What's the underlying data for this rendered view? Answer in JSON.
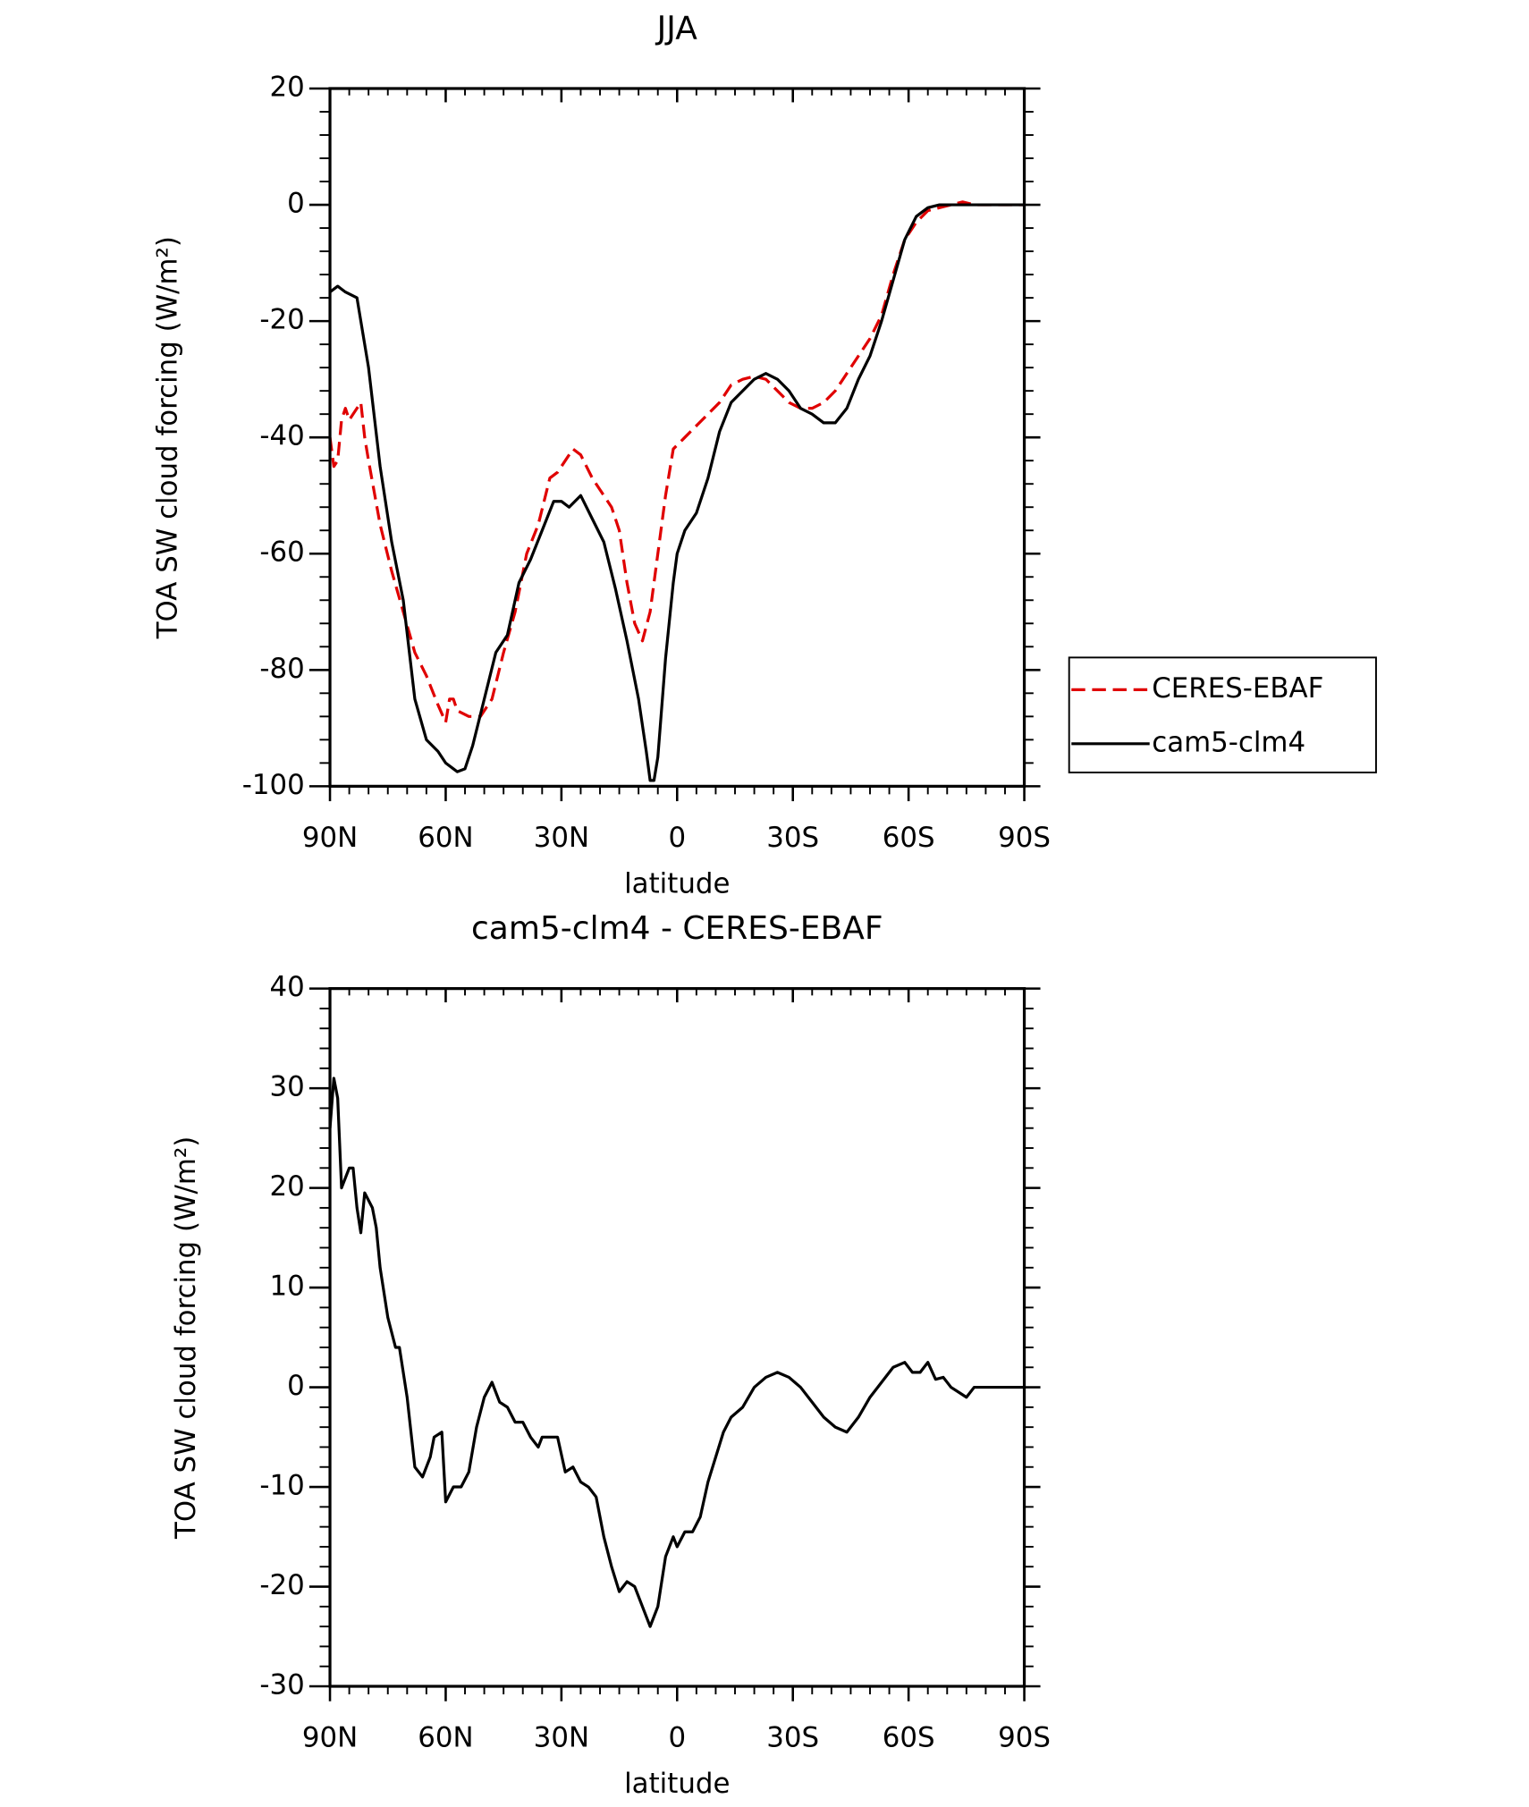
{
  "chart_data": [
    {
      "type": "line",
      "title": "JJA",
      "x_label": "latitude",
      "y_label": "TOA SW cloud forcing (W/m²)",
      "xlim": [
        90,
        -90
      ],
      "ylim": [
        -100,
        20
      ],
      "xticks": [
        {
          "value": 90,
          "label": "90N"
        },
        {
          "value": 60,
          "label": "60N"
        },
        {
          "value": 30,
          "label": "30N"
        },
        0,
        {
          "value": -30,
          "label": "30S"
        },
        {
          "value": -60,
          "label": "60S"
        },
        {
          "value": -90,
          "label": "90S"
        }
      ],
      "yticks": [
        -100,
        -80,
        -60,
        -40,
        -20,
        0,
        20
      ],
      "legend": "right",
      "series": [
        {
          "name": "CERES-EBAF",
          "color": "#e00000",
          "dash": true,
          "x": [
            90,
            89,
            88,
            87,
            86,
            85,
            83,
            82,
            81,
            80,
            77,
            74,
            71,
            68,
            65,
            62,
            60,
            59,
            58,
            57,
            54,
            51,
            48,
            45,
            42,
            39,
            36,
            33,
            31,
            29,
            27,
            25,
            22,
            20,
            17,
            15,
            13,
            11,
            9,
            7,
            5,
            3,
            1,
            -2,
            -5,
            -8,
            -11,
            -14,
            -17,
            -20,
            -23,
            -26,
            -29,
            -32,
            -35,
            -38,
            -41,
            -44,
            -47,
            -50,
            -53,
            -56,
            -59,
            -62,
            -65,
            -68,
            -71,
            -74,
            -77,
            -80,
            -90
          ],
          "values": [
            -40,
            -45,
            -44,
            -37,
            -35,
            -37,
            -35,
            -34,
            -40,
            -44,
            -55,
            -63,
            -70,
            -77,
            -81,
            -86,
            -89,
            -85,
            -85,
            -87,
            -88,
            -88,
            -85,
            -77,
            -70,
            -60,
            -55,
            -47,
            -46,
            -44,
            -42,
            -43,
            -47,
            -49,
            -52,
            -56,
            -65,
            -72,
            -75,
            -70,
            -60,
            -50,
            -42,
            -40,
            -38,
            -36,
            -34,
            -31,
            -30,
            -29.5,
            -30,
            -32,
            -34,
            -35,
            -35,
            -34,
            -32,
            -29,
            -26,
            -23,
            -19,
            -12,
            -6,
            -3,
            -1,
            -0.5,
            0,
            0.5,
            0,
            0,
            0
          ]
        },
        {
          "name": "cam5-clm4",
          "color": "#000000",
          "dash": false,
          "x": [
            90,
            88,
            86,
            83,
            80,
            77,
            74,
            71,
            68,
            65,
            62,
            60,
            57,
            55,
            53,
            50,
            47,
            44,
            41,
            38,
            35,
            32,
            30,
            28,
            25,
            22,
            19,
            16,
            13,
            10,
            8,
            7,
            6,
            5,
            3,
            1,
            0,
            -2,
            -5,
            -8,
            -11,
            -14,
            -17,
            -20,
            -23,
            -26,
            -29,
            -32,
            -35,
            -38,
            -41,
            -44,
            -47,
            -50,
            -53,
            -56,
            -59,
            -62,
            -65,
            -68,
            -75,
            -90
          ],
          "values": [
            -15,
            -14,
            -15,
            -16,
            -28,
            -45,
            -58,
            -68,
            -85,
            -92,
            -94,
            -96,
            -97.5,
            -97,
            -93,
            -85,
            -77,
            -74,
            -65,
            -61,
            -56,
            -51,
            -51,
            -52,
            -50,
            -54,
            -58,
            -66,
            -75,
            -85,
            -94,
            -99,
            -99,
            -95,
            -78,
            -65,
            -60,
            -56,
            -53,
            -47,
            -39,
            -34,
            -32,
            -30,
            -29,
            -30,
            -32,
            -35,
            -36,
            -37.5,
            -37.5,
            -35,
            -30,
            -26,
            -20,
            -13,
            -6,
            -2,
            -0.5,
            0,
            0,
            0
          ]
        }
      ]
    },
    {
      "type": "line",
      "title": "cam5-clm4 - CERES-EBAF",
      "x_label": "latitude",
      "y_label": "TOA SW cloud forcing (W/m²)",
      "xlim": [
        90,
        -90
      ],
      "ylim": [
        -30,
        40
      ],
      "xticks": [
        {
          "value": 90,
          "label": "90N"
        },
        {
          "value": 60,
          "label": "60N"
        },
        {
          "value": 30,
          "label": "30N"
        },
        0,
        {
          "value": -30,
          "label": "30S"
        },
        {
          "value": -60,
          "label": "60S"
        },
        {
          "value": -90,
          "label": "90S"
        }
      ],
      "yticks": [
        -30,
        -20,
        -10,
        0,
        10,
        20,
        30,
        40
      ],
      "series": [
        {
          "color": "#000000",
          "dash": false,
          "x": [
            90,
            89,
            88,
            87,
            85,
            84,
            83,
            82,
            81,
            79,
            78,
            77,
            75,
            73,
            72,
            70,
            68,
            66,
            64,
            63,
            61,
            60,
            58,
            56,
            54,
            52,
            50,
            48,
            46,
            44,
            42,
            40,
            38,
            36,
            35,
            33,
            31,
            29,
            27,
            25,
            23,
            21,
            19,
            17,
            15,
            13,
            11,
            9,
            7,
            5,
            3,
            1,
            0,
            -2,
            -4,
            -6,
            -8,
            -10,
            -12,
            -14,
            -17,
            -20,
            -23,
            -26,
            -29,
            -32,
            -35,
            -38,
            -41,
            -44,
            -47,
            -50,
            -53,
            -56,
            -59,
            -61,
            -63,
            -65,
            -67,
            -69,
            -71,
            -73,
            -75,
            -77,
            -79,
            -90
          ],
          "values": [
            26,
            31,
            29,
            20,
            22,
            22,
            18,
            15.5,
            19.5,
            18,
            16,
            12,
            7,
            4,
            4,
            -1,
            -8,
            -9,
            -7,
            -5,
            -4.5,
            -11.5,
            -10,
            -10,
            -8.5,
            -4,
            -1,
            0.5,
            -1.5,
            -2,
            -3.5,
            -3.5,
            -5,
            -6,
            -5,
            -5,
            -5,
            -8.5,
            -8,
            -9.5,
            -10,
            -11,
            -15,
            -18,
            -20.5,
            -19.5,
            -20,
            -22,
            -24,
            -22,
            -17,
            -15,
            -16,
            -14.5,
            -14.5,
            -13,
            -9.5,
            -7,
            -4.5,
            -3,
            -2,
            0,
            1,
            1.5,
            1,
            0,
            -1.5,
            -3,
            -4,
            -4.5,
            -3,
            -1,
            0.5,
            2,
            2.5,
            1.5,
            1.5,
            2.5,
            0.8,
            1,
            0,
            -0.5,
            -1,
            0,
            0,
            0
          ]
        }
      ]
    }
  ]
}
